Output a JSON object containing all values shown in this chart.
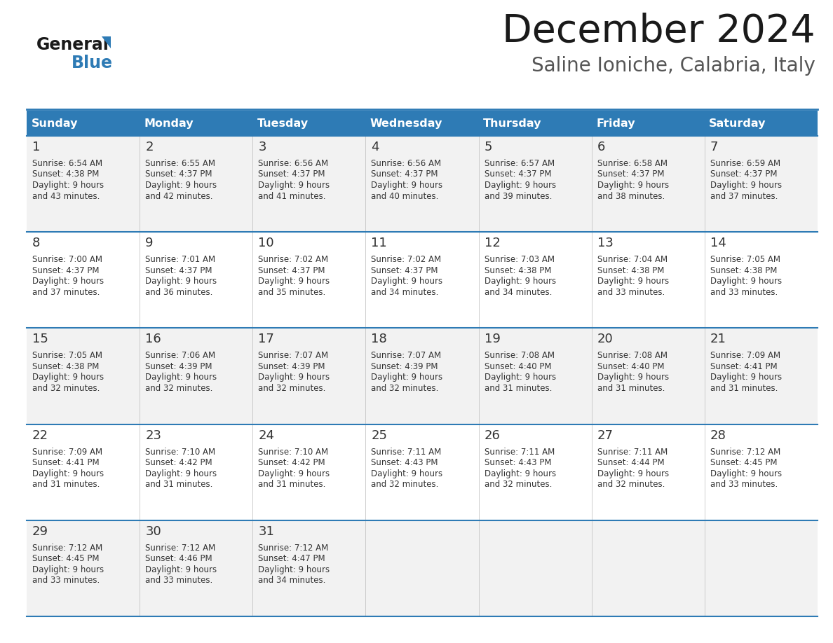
{
  "title": "December 2024",
  "subtitle": "Saline Ioniche, Calabria, Italy",
  "days_of_week": [
    "Sunday",
    "Monday",
    "Tuesday",
    "Wednesday",
    "Thursday",
    "Friday",
    "Saturday"
  ],
  "header_bg": "#2E7BB5",
  "header_text": "#FFFFFF",
  "cell_bg_odd": "#F2F2F2",
  "cell_bg_even": "#FFFFFF",
  "separator_color": "#2E7BB5",
  "text_color": "#333333",
  "logo_general_color": "#1a1a1a",
  "logo_blue_color": "#2E7BB5",
  "title_color": "#1a1a1a",
  "subtitle_color": "#555555",
  "calendar_data": [
    {
      "day": 1,
      "col": 0,
      "sunrise": "6:54 AM",
      "sunset": "4:38 PM",
      "daylight_mins": "43"
    },
    {
      "day": 2,
      "col": 1,
      "sunrise": "6:55 AM",
      "sunset": "4:37 PM",
      "daylight_mins": "42"
    },
    {
      "day": 3,
      "col": 2,
      "sunrise": "6:56 AM",
      "sunset": "4:37 PM",
      "daylight_mins": "41"
    },
    {
      "day": 4,
      "col": 3,
      "sunrise": "6:56 AM",
      "sunset": "4:37 PM",
      "daylight_mins": "40"
    },
    {
      "day": 5,
      "col": 4,
      "sunrise": "6:57 AM",
      "sunset": "4:37 PM",
      "daylight_mins": "39"
    },
    {
      "day": 6,
      "col": 5,
      "sunrise": "6:58 AM",
      "sunset": "4:37 PM",
      "daylight_mins": "38"
    },
    {
      "day": 7,
      "col": 6,
      "sunrise": "6:59 AM",
      "sunset": "4:37 PM",
      "daylight_mins": "37"
    },
    {
      "day": 8,
      "col": 0,
      "sunrise": "7:00 AM",
      "sunset": "4:37 PM",
      "daylight_mins": "37"
    },
    {
      "day": 9,
      "col": 1,
      "sunrise": "7:01 AM",
      "sunset": "4:37 PM",
      "daylight_mins": "36"
    },
    {
      "day": 10,
      "col": 2,
      "sunrise": "7:02 AM",
      "sunset": "4:37 PM",
      "daylight_mins": "35"
    },
    {
      "day": 11,
      "col": 3,
      "sunrise": "7:02 AM",
      "sunset": "4:37 PM",
      "daylight_mins": "34"
    },
    {
      "day": 12,
      "col": 4,
      "sunrise": "7:03 AM",
      "sunset": "4:38 PM",
      "daylight_mins": "34"
    },
    {
      "day": 13,
      "col": 5,
      "sunrise": "7:04 AM",
      "sunset": "4:38 PM",
      "daylight_mins": "33"
    },
    {
      "day": 14,
      "col": 6,
      "sunrise": "7:05 AM",
      "sunset": "4:38 PM",
      "daylight_mins": "33"
    },
    {
      "day": 15,
      "col": 0,
      "sunrise": "7:05 AM",
      "sunset": "4:38 PM",
      "daylight_mins": "32"
    },
    {
      "day": 16,
      "col": 1,
      "sunrise": "7:06 AM",
      "sunset": "4:39 PM",
      "daylight_mins": "32"
    },
    {
      "day": 17,
      "col": 2,
      "sunrise": "7:07 AM",
      "sunset": "4:39 PM",
      "daylight_mins": "32"
    },
    {
      "day": 18,
      "col": 3,
      "sunrise": "7:07 AM",
      "sunset": "4:39 PM",
      "daylight_mins": "32"
    },
    {
      "day": 19,
      "col": 4,
      "sunrise": "7:08 AM",
      "sunset": "4:40 PM",
      "daylight_mins": "31"
    },
    {
      "day": 20,
      "col": 5,
      "sunrise": "7:08 AM",
      "sunset": "4:40 PM",
      "daylight_mins": "31"
    },
    {
      "day": 21,
      "col": 6,
      "sunrise": "7:09 AM",
      "sunset": "4:41 PM",
      "daylight_mins": "31"
    },
    {
      "day": 22,
      "col": 0,
      "sunrise": "7:09 AM",
      "sunset": "4:41 PM",
      "daylight_mins": "31"
    },
    {
      "day": 23,
      "col": 1,
      "sunrise": "7:10 AM",
      "sunset": "4:42 PM",
      "daylight_mins": "31"
    },
    {
      "day": 24,
      "col": 2,
      "sunrise": "7:10 AM",
      "sunset": "4:42 PM",
      "daylight_mins": "31"
    },
    {
      "day": 25,
      "col": 3,
      "sunrise": "7:11 AM",
      "sunset": "4:43 PM",
      "daylight_mins": "32"
    },
    {
      "day": 26,
      "col": 4,
      "sunrise": "7:11 AM",
      "sunset": "4:43 PM",
      "daylight_mins": "32"
    },
    {
      "day": 27,
      "col": 5,
      "sunrise": "7:11 AM",
      "sunset": "4:44 PM",
      "daylight_mins": "32"
    },
    {
      "day": 28,
      "col": 6,
      "sunrise": "7:12 AM",
      "sunset": "4:45 PM",
      "daylight_mins": "33"
    },
    {
      "day": 29,
      "col": 0,
      "sunrise": "7:12 AM",
      "sunset": "4:45 PM",
      "daylight_mins": "33"
    },
    {
      "day": 30,
      "col": 1,
      "sunrise": "7:12 AM",
      "sunset": "4:46 PM",
      "daylight_mins": "33"
    },
    {
      "day": 31,
      "col": 2,
      "sunrise": "7:12 AM",
      "sunset": "4:47 PM",
      "daylight_mins": "34"
    }
  ]
}
